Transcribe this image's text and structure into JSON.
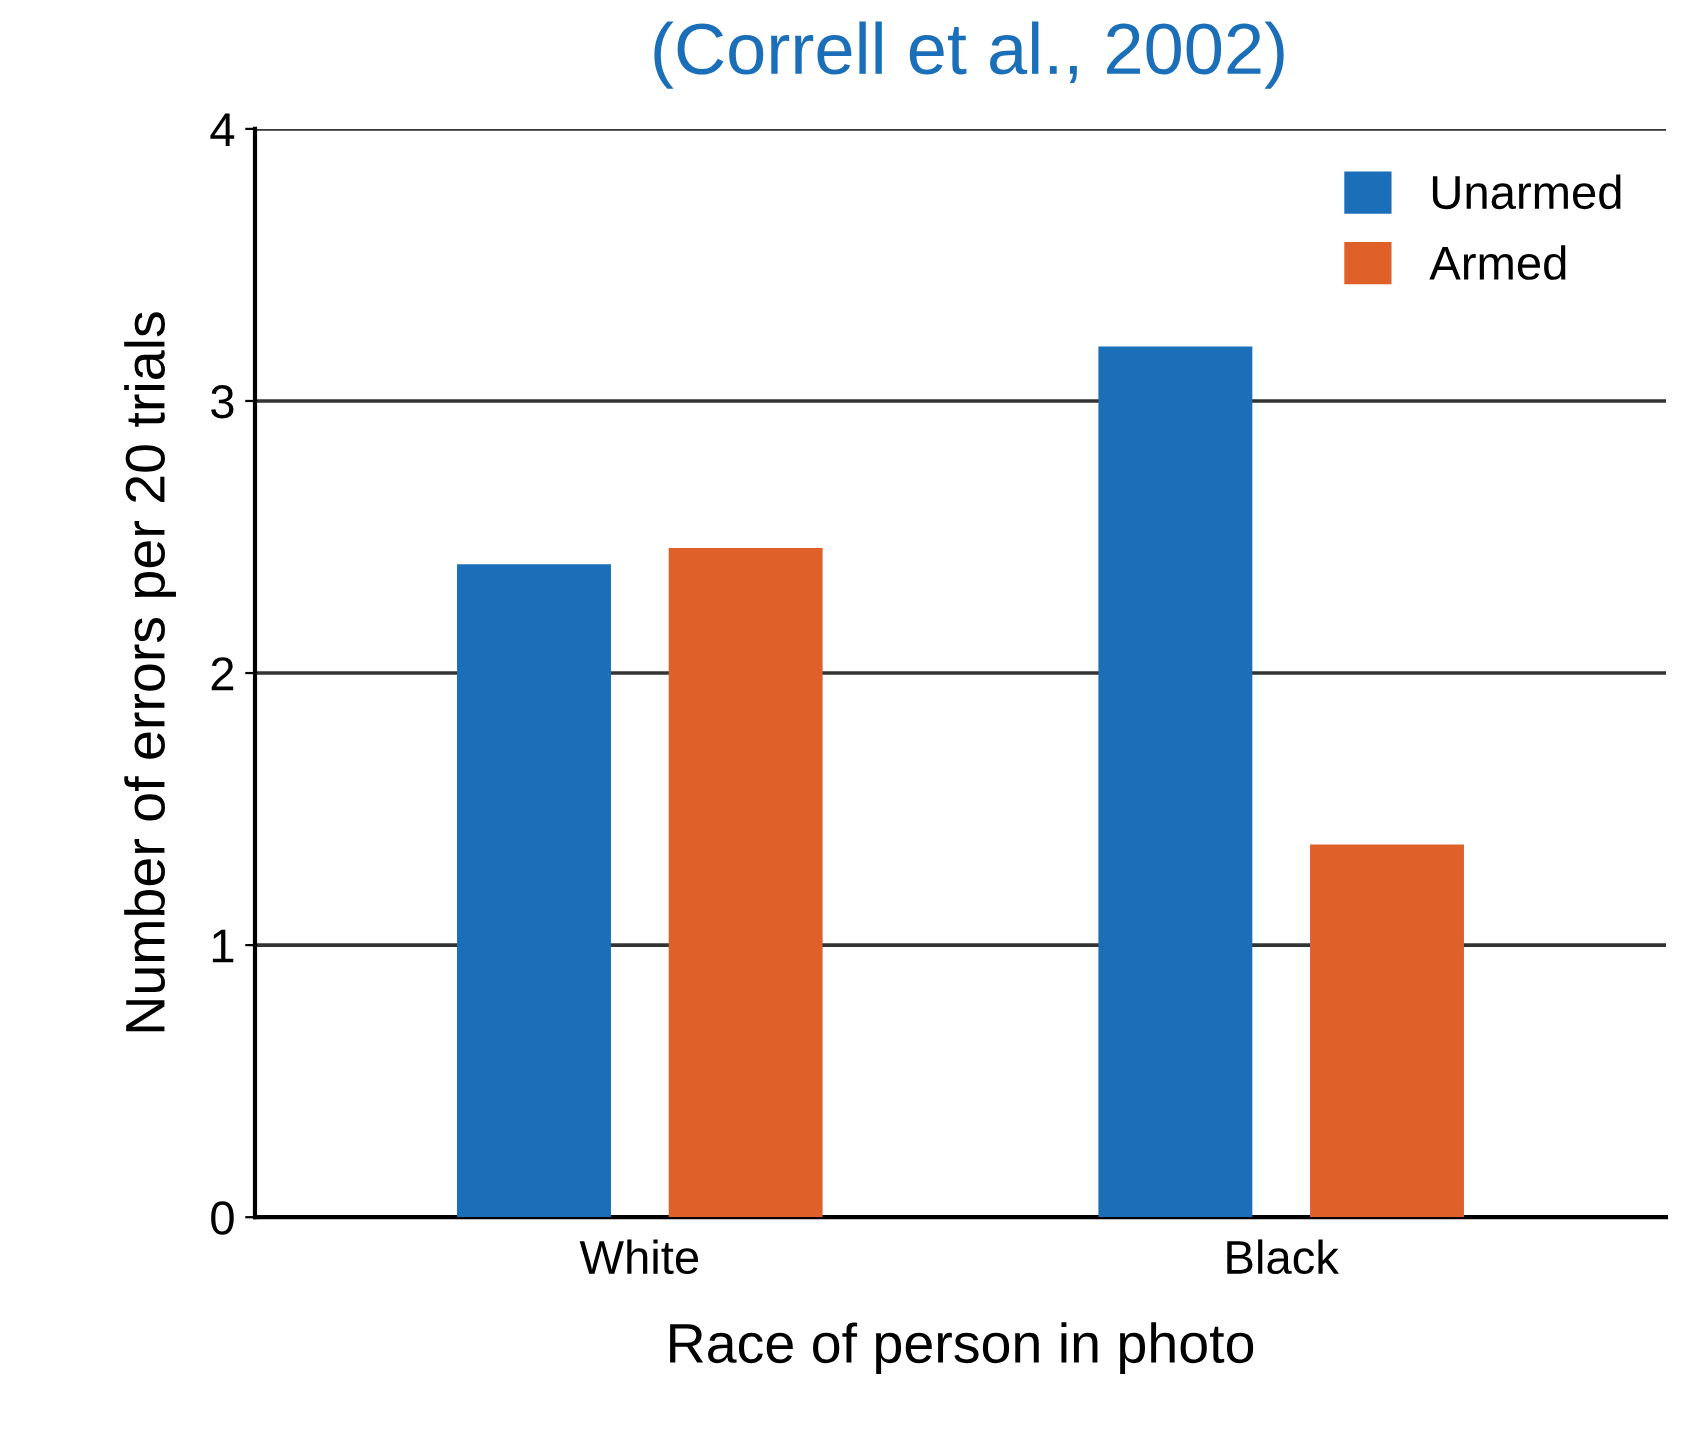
{
  "chart_data": {
    "type": "bar",
    "title": "(Correll et al., 2002)",
    "xlabel": "Race of person in photo",
    "ylabel": "Number of errors per 20 trials",
    "categories": [
      "White",
      "Black"
    ],
    "series": [
      {
        "name": "Unarmed",
        "color": "#1a6fb8",
        "values": [
          2.4,
          3.2
        ]
      },
      {
        "name": "Armed",
        "color": "#e0602a",
        "values": [
          2.46,
          1.37
        ]
      }
    ],
    "ylim": [
      0,
      4
    ],
    "yticks": [
      0,
      1,
      2,
      3,
      4
    ],
    "grid": "y",
    "legend": "top right"
  }
}
